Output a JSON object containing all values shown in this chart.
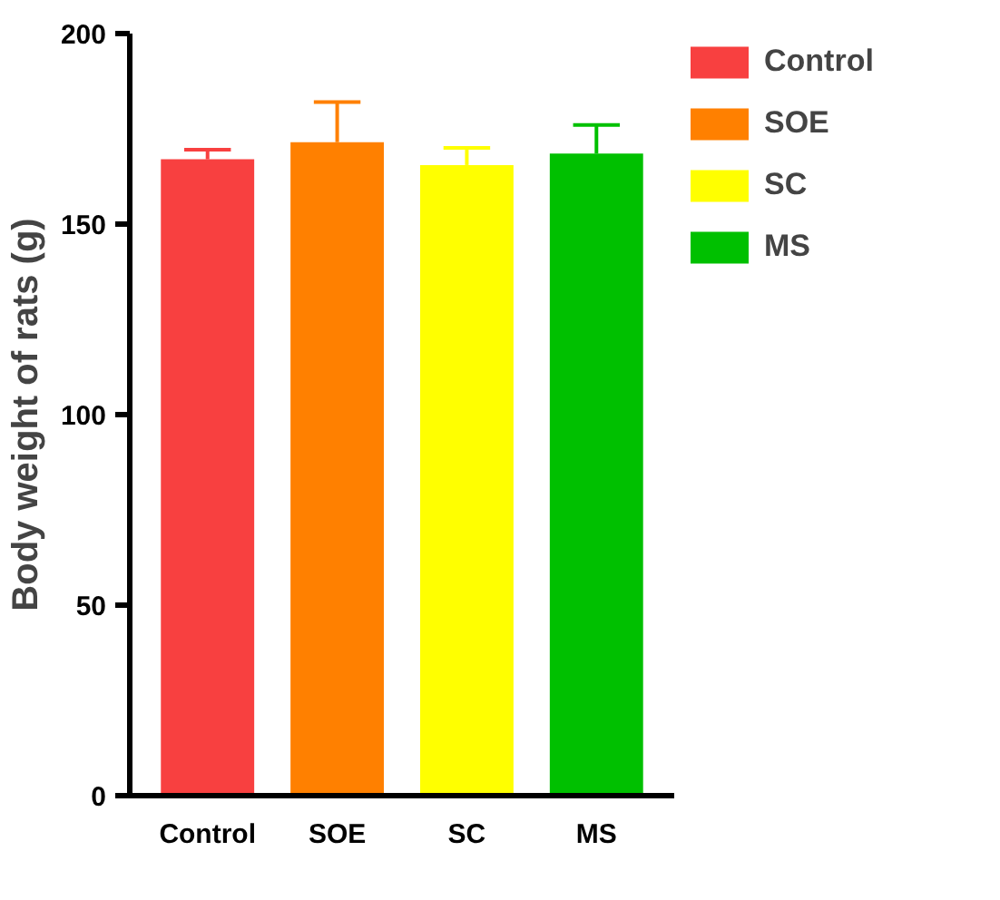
{
  "chart_data": {
    "type": "bar",
    "ylabel": "Body weight of rats (g)",
    "categories": [
      "Control",
      "SOE",
      "SC",
      "MS"
    ],
    "series": [
      {
        "name": "Control",
        "color": "#f84040",
        "values": [
          167,
          null,
          null,
          null
        ],
        "errors": [
          [
            167,
            169.5
          ],
          null,
          null,
          null
        ]
      },
      {
        "name": "SOE",
        "color": "#ff8000",
        "values": [
          null,
          171.5,
          null,
          null
        ],
        "errors": [
          null,
          [
            171.5,
            182
          ],
          null,
          null
        ]
      },
      {
        "name": "SC",
        "color": "#ffff00",
        "values": [
          null,
          null,
          165.5,
          null
        ],
        "errors": [
          null,
          null,
          [
            165.5,
            170
          ],
          null
        ]
      },
      {
        "name": "MS",
        "color": "#00c000",
        "values": [
          null,
          null,
          null,
          168.5
        ],
        "errors": [
          null,
          null,
          null,
          [
            168.5,
            176
          ]
        ]
      }
    ],
    "ylim": [
      0,
      200
    ],
    "yticks": [
      0,
      50,
      100,
      150,
      200
    ],
    "legend": "top right"
  }
}
